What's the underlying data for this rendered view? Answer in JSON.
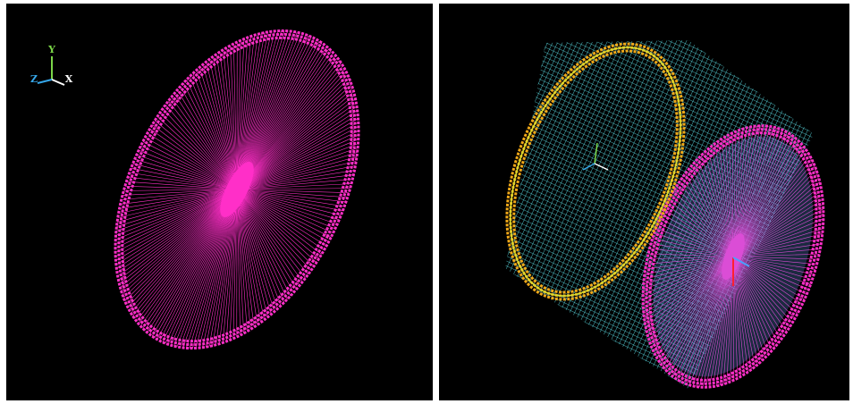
{
  "left_panel": {
    "triad": {
      "y": "Y",
      "z": "Z",
      "x": "X"
    }
  }
}
